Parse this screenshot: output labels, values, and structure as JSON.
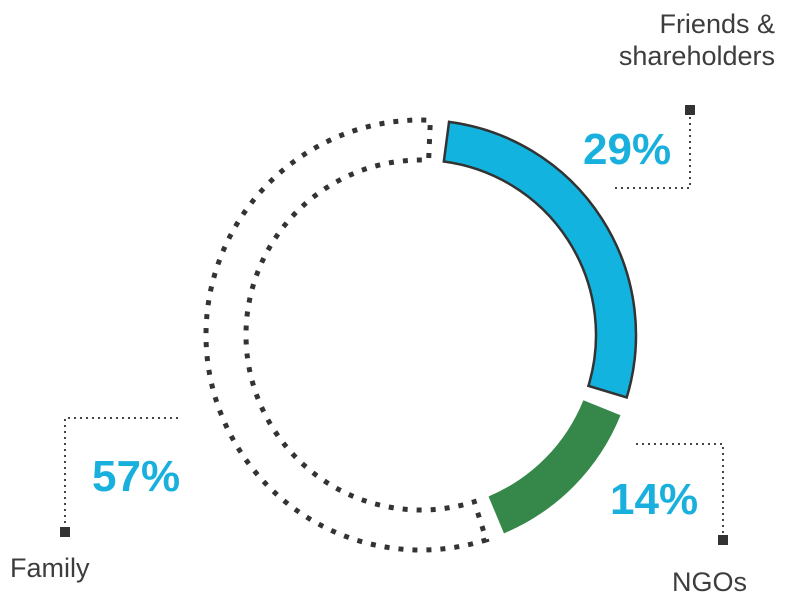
{
  "chart_data": {
    "type": "pie",
    "style": "donut",
    "categories": [
      "Friends & shareholders",
      "NGOs",
      "Family"
    ],
    "values": [
      29,
      14,
      57
    ],
    "value_labels": [
      "29%",
      "14%",
      "57%"
    ],
    "colors": [
      "#12b3de",
      "#35874a",
      "none"
    ],
    "outlined": [
      true,
      false,
      false
    ],
    "dashed_outline": [
      false,
      false,
      true
    ],
    "label_color": "#1ab0de",
    "category_lines": [
      "Friends &",
      "shareholders"
    ]
  }
}
